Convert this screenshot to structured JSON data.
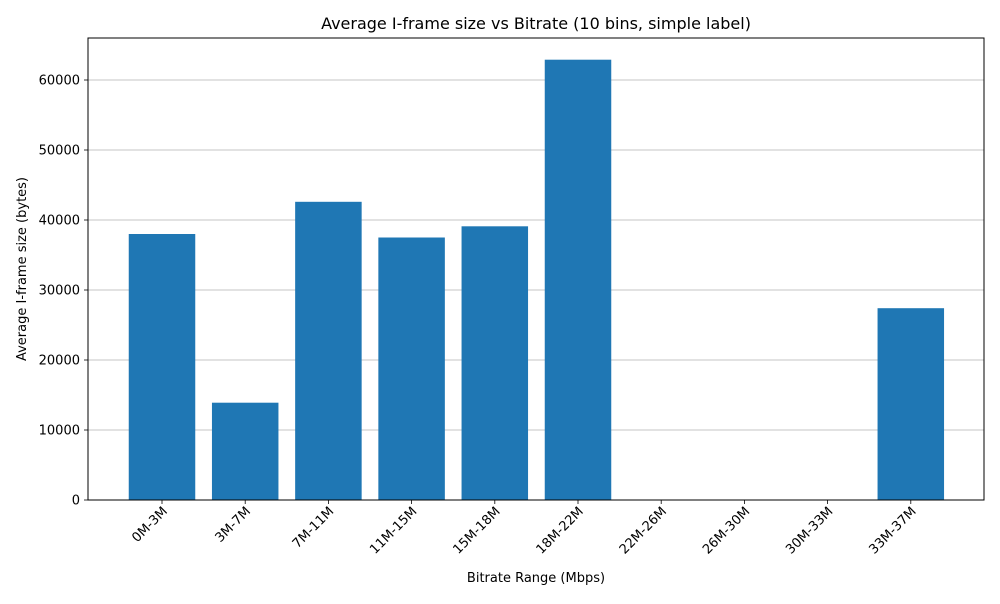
{
  "chart_data": {
    "type": "bar",
    "title": "Average I-frame size vs Bitrate (10 bins, simple label)",
    "xlabel": "Bitrate Range (Mbps)",
    "ylabel": "Average I-frame size (bytes)",
    "categories": [
      "0M-3M",
      "3M-7M",
      "7M-11M",
      "11M-15M",
      "15M-18M",
      "18M-22M",
      "22M-26M",
      "26M-30M",
      "30M-33M",
      "33M-37M"
    ],
    "values": [
      38000,
      13900,
      42600,
      37500,
      39100,
      62900,
      0,
      0,
      0,
      27400
    ],
    "ylim": [
      0,
      66000
    ],
    "yticks": [
      0,
      10000,
      20000,
      30000,
      40000,
      50000,
      60000
    ],
    "grid": "y",
    "bar_color": "#1f77b4",
    "legend": "none"
  }
}
